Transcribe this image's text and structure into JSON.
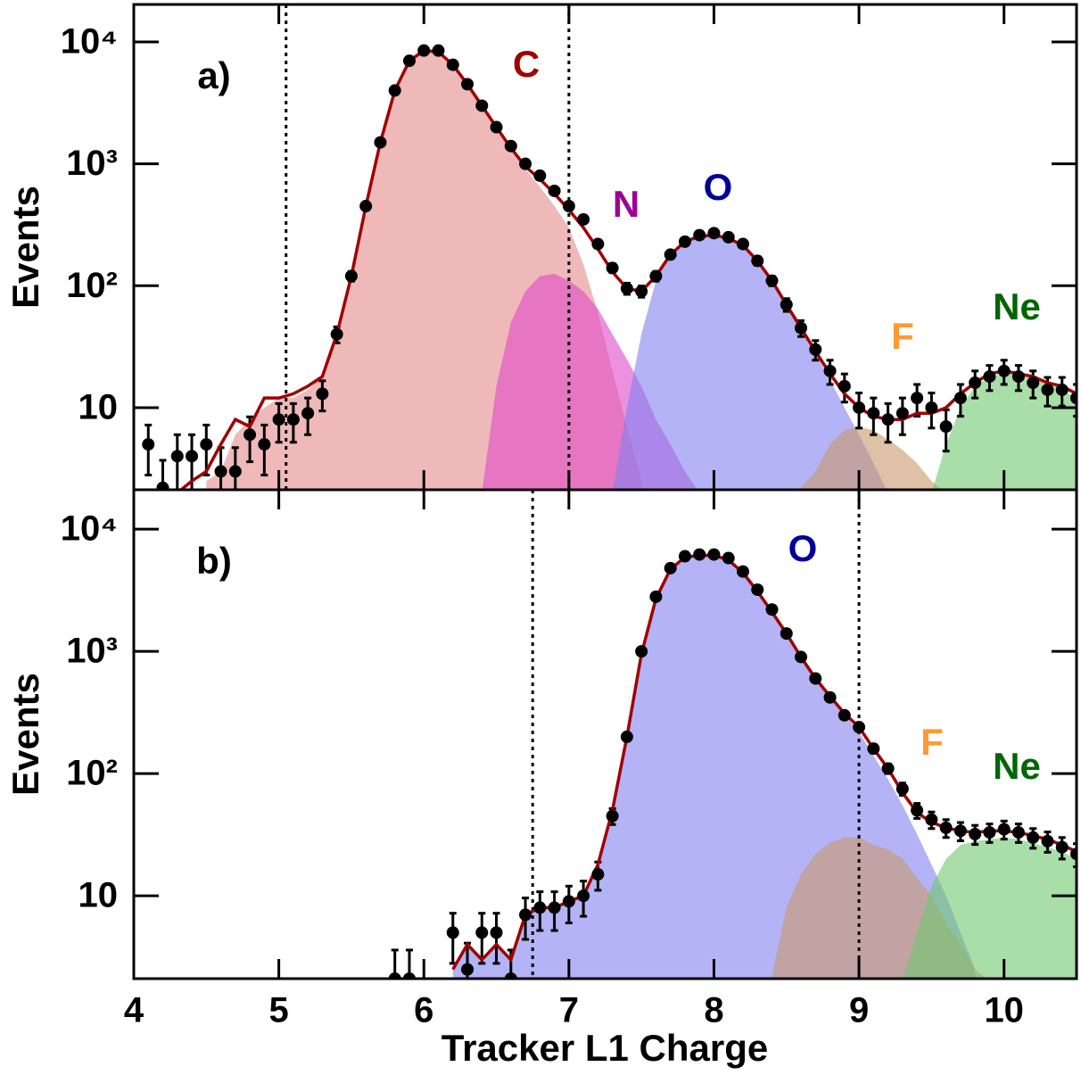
{
  "chart_data": [
    {
      "type": "area",
      "panel_label": "a)",
      "ylabel": "Events",
      "log_y": true,
      "show_xtick_labels": false,
      "xlim": [
        4,
        10.5
      ],
      "xticks": [
        4,
        5,
        6,
        7,
        8,
        9,
        10
      ],
      "ylim": [
        2.12,
        20300
      ],
      "yticks": [
        10,
        {
          "value": 100,
          "label": "10²"
        },
        {
          "value": 1000,
          "label": "10³"
        },
        {
          "value": 10000,
          "label": "10⁴"
        }
      ],
      "cuts": [
        5.05,
        7.0
      ],
      "x": [
        4.0,
        4.1,
        4.2,
        4.3,
        4.4,
        4.5,
        4.6,
        4.7,
        4.8,
        4.9,
        5.0,
        5.1,
        5.2,
        5.3,
        5.4,
        5.5,
        5.6,
        5.7,
        5.8,
        5.9,
        6.0,
        6.1,
        6.2,
        6.3,
        6.4,
        6.5,
        6.6,
        6.7,
        6.8,
        6.9,
        7.0,
        7.1,
        7.2,
        7.3,
        7.4,
        7.5,
        7.6,
        7.7,
        7.8,
        7.9,
        8.0,
        8.1,
        8.2,
        8.3,
        8.4,
        8.5,
        8.6,
        8.7,
        8.8,
        8.9,
        9.0,
        9.1,
        9.2,
        9.3,
        9.4,
        9.5,
        9.6,
        9.7,
        9.8,
        9.9,
        10.0,
        10.1,
        10.2,
        10.3,
        10.4,
        10.5
      ],
      "data": {
        "color": "#000000",
        "values": [
          null,
          5,
          2.2,
          4,
          4,
          5,
          3,
          3,
          6,
          5,
          8,
          8,
          9,
          13,
          40,
          120,
          450,
          1500,
          4000,
          7000,
          8500,
          8500,
          6500,
          4500,
          3000,
          2000,
          1400,
          1000,
          800,
          600,
          450,
          350,
          220,
          140,
          95,
          90,
          120,
          180,
          230,
          260,
          270,
          250,
          220,
          160,
          110,
          70,
          45,
          30,
          20,
          15,
          10,
          9,
          8,
          9,
          12,
          10,
          7,
          12,
          16,
          18,
          20,
          18,
          16,
          14,
          14,
          12
        ],
        "errors": [
          null,
          2.2,
          1.5,
          2,
          2,
          2.2,
          1.7,
          1.7,
          2.4,
          2.2,
          2.8,
          2.8,
          3,
          3.6,
          6,
          11,
          21,
          39,
          63,
          84,
          92,
          92,
          81,
          67,
          55,
          45,
          37,
          32,
          28,
          24,
          21,
          19,
          15,
          12,
          10,
          9.5,
          11,
          13,
          15,
          16,
          16,
          16,
          15,
          13,
          10,
          8.4,
          6.7,
          5.5,
          4.5,
          3.9,
          3.2,
          3,
          2.8,
          3,
          3.5,
          3.2,
          2.6,
          3.5,
          4,
          4.2,
          4.5,
          4.2,
          4,
          3.7,
          3.7,
          3.5
        ]
      },
      "fit": {
        "color": "#a00000",
        "values": [
          1.8,
          1.8,
          1.9,
          2,
          2.5,
          3,
          5,
          8,
          7,
          12,
          12,
          13,
          15,
          18,
          40,
          120,
          450,
          1500,
          4000,
          7000,
          8500,
          8300,
          6500,
          4500,
          3000,
          2000,
          1350,
          950,
          750,
          570,
          420,
          300,
          200,
          130,
          95,
          90,
          120,
          180,
          230,
          255,
          260,
          245,
          215,
          160,
          110,
          70,
          45,
          29,
          19,
          13,
          10,
          8.5,
          8,
          8,
          9,
          9,
          10,
          13,
          16,
          19,
          20,
          19,
          18,
          16,
          15,
          13
        ]
      },
      "series": [
        {
          "name": "C",
          "color": "#a00000",
          "fill": "#e58a8a",
          "x": [
            4.5,
            4.6,
            4.7,
            4.8,
            4.9,
            5.0,
            5.1,
            5.2,
            5.3,
            5.4,
            5.5,
            5.6,
            5.7,
            5.8,
            5.9,
            6.0,
            6.1,
            6.2,
            6.3,
            6.4,
            6.5,
            6.6,
            6.7,
            6.8,
            6.9,
            7.0,
            7.1,
            7.2,
            7.3,
            7.4,
            7.5
          ],
          "values": [
            2.5,
            3,
            6,
            8,
            10,
            12,
            12,
            14,
            18,
            40,
            120,
            450,
            1500,
            4000,
            7000,
            8500,
            8300,
            6500,
            4500,
            3000,
            2000,
            1300,
            900,
            650,
            450,
            300,
            150,
            60,
            20,
            7,
            2.5
          ]
        },
        {
          "name": "N",
          "color": "#990099",
          "fill": "#e048c8",
          "x": [
            6.4,
            6.5,
            6.6,
            6.7,
            6.8,
            6.9,
            7.0,
            7.1,
            7.2,
            7.3,
            7.4,
            7.5,
            7.6,
            7.7,
            7.8,
            7.9
          ],
          "values": [
            2,
            15,
            50,
            90,
            120,
            125,
            110,
            90,
            65,
            40,
            25,
            15,
            8,
            5,
            3,
            2
          ]
        },
        {
          "name": "O",
          "color": "#000099",
          "fill": "#8080f0",
          "x": [
            7.3,
            7.4,
            7.5,
            7.6,
            7.7,
            7.8,
            7.9,
            8.0,
            8.1,
            8.2,
            8.3,
            8.4,
            8.5,
            8.6,
            8.7,
            8.8,
            8.9,
            9.0,
            9.1,
            9.2
          ],
          "values": [
            2,
            10,
            40,
            110,
            180,
            230,
            260,
            265,
            245,
            210,
            160,
            110,
            70,
            45,
            28,
            17,
            10,
            6,
            3.5,
            2
          ]
        },
        {
          "name": "F",
          "color": "#ff9933",
          "fill": "#c8986a",
          "x": [
            8.6,
            8.7,
            8.8,
            8.9,
            9.0,
            9.1,
            9.2,
            9.3,
            9.4,
            9.5,
            9.6
          ],
          "values": [
            2.2,
            3,
            5,
            6.5,
            7,
            6.5,
            5.5,
            4.5,
            3.5,
            2.5,
            2
          ]
        },
        {
          "name": "Ne",
          "color": "#006600",
          "fill": "#70c870",
          "x": [
            9.5,
            9.6,
            9.7,
            9.8,
            9.9,
            10.0,
            10.1,
            10.2,
            10.3,
            10.4,
            10.5
          ],
          "values": [
            2,
            5,
            10,
            15,
            18,
            19,
            19,
            18,
            16,
            14,
            12
          ]
        }
      ]
    },
    {
      "type": "area",
      "panel_label": "b)",
      "ylabel": "Events",
      "xlabel": "Tracker L1 Charge",
      "log_y": true,
      "show_xtick_labels": true,
      "xlim": [
        4,
        10.5
      ],
      "xticks": [
        4,
        5,
        6,
        7,
        8,
        9,
        10
      ],
      "ylim": [
        2.1,
        21000
      ],
      "yticks": [
        10,
        {
          "value": 100,
          "label": "10²"
        },
        {
          "value": 1000,
          "label": "10³"
        },
        {
          "value": 10000,
          "label": "10⁴"
        }
      ],
      "cuts": [
        6.75,
        9.0
      ],
      "x": [
        4.0,
        4.1,
        4.2,
        4.3,
        4.4,
        4.5,
        4.6,
        4.7,
        4.8,
        4.9,
        5.0,
        5.1,
        5.2,
        5.3,
        5.4,
        5.5,
        5.6,
        5.7,
        5.8,
        5.9,
        6.0,
        6.1,
        6.2,
        6.3,
        6.4,
        6.5,
        6.6,
        6.7,
        6.8,
        6.9,
        7.0,
        7.1,
        7.2,
        7.3,
        7.4,
        7.5,
        7.6,
        7.7,
        7.8,
        7.9,
        8.0,
        8.1,
        8.2,
        8.3,
        8.4,
        8.5,
        8.6,
        8.7,
        8.8,
        8.9,
        9.0,
        9.1,
        9.2,
        9.3,
        9.4,
        9.5,
        9.6,
        9.7,
        9.8,
        9.9,
        10.0,
        10.1,
        10.2,
        10.3,
        10.4,
        10.5
      ],
      "data": {
        "color": "#000000",
        "values": [
          null,
          null,
          null,
          null,
          null,
          null,
          null,
          null,
          null,
          null,
          null,
          null,
          null,
          null,
          null,
          null,
          null,
          null,
          2.1,
          2.1,
          null,
          null,
          5,
          2.5,
          5,
          5,
          2.1,
          7,
          8,
          8,
          9,
          10,
          15,
          45,
          200,
          1000,
          2800,
          4800,
          6000,
          6200,
          6200,
          5800,
          4500,
          3200,
          2200,
          1400,
          900,
          600,
          420,
          300,
          240,
          160,
          110,
          75,
          50,
          42,
          36,
          34,
          32,
          33,
          35,
          33,
          30,
          28,
          25,
          22
        ],
        "errors": [
          null,
          null,
          null,
          null,
          null,
          null,
          null,
          null,
          null,
          null,
          null,
          null,
          null,
          null,
          null,
          null,
          null,
          null,
          1.5,
          1.5,
          null,
          null,
          2.2,
          1.6,
          2.2,
          2.2,
          1.5,
          2.6,
          2.8,
          2.8,
          3,
          3.2,
          3.9,
          6.7,
          14,
          32,
          53,
          69,
          77,
          79,
          79,
          76,
          67,
          57,
          47,
          37,
          30,
          24,
          20,
          17,
          15,
          13,
          10,
          8.7,
          7,
          6.5,
          6,
          5.8,
          5.7,
          5.7,
          5.9,
          5.7,
          5.5,
          5.3,
          5,
          4.7
        ]
      },
      "fit": {
        "color": "#a00000",
        "values": [
          null,
          null,
          null,
          null,
          null,
          null,
          null,
          null,
          null,
          null,
          null,
          null,
          null,
          null,
          null,
          null,
          null,
          null,
          null,
          null,
          null,
          null,
          2.5,
          4,
          3,
          4,
          3,
          7,
          8,
          8,
          9,
          10,
          18,
          50,
          200,
          950,
          2700,
          4700,
          5900,
          6100,
          6100,
          5600,
          4400,
          3100,
          2100,
          1400,
          900,
          600,
          430,
          310,
          240,
          160,
          110,
          70,
          48,
          40,
          36,
          34,
          33,
          34,
          34,
          33,
          31,
          29,
          26,
          23
        ]
      },
      "series": [
        {
          "name": "O",
          "color": "#000099",
          "fill": "#8080f0",
          "x": [
            6.2,
            6.3,
            6.4,
            6.5,
            6.6,
            6.7,
            6.8,
            6.9,
            7.0,
            7.1,
            7.2,
            7.3,
            7.4,
            7.5,
            7.6,
            7.7,
            7.8,
            7.9,
            8.0,
            8.1,
            8.2,
            8.3,
            8.4,
            8.5,
            8.6,
            8.7,
            8.8,
            8.9,
            9.0,
            9.1,
            9.2,
            9.3,
            9.4,
            9.5,
            9.6,
            9.7,
            9.8
          ],
          "values": [
            2.5,
            4,
            3,
            4,
            3,
            7,
            8,
            8,
            9,
            10,
            18,
            50,
            200,
            950,
            2700,
            4700,
            5900,
            6100,
            6100,
            5600,
            4400,
            3100,
            2100,
            1400,
            900,
            600,
            430,
            300,
            220,
            140,
            90,
            55,
            32,
            18,
            10,
            5,
            2.5
          ]
        },
        {
          "name": "F",
          "color": "#ff9933",
          "fill": "#c8986a",
          "x": [
            8.4,
            8.5,
            8.6,
            8.7,
            8.8,
            8.9,
            9.0,
            9.1,
            9.2,
            9.3,
            9.4,
            9.5,
            9.6,
            9.7,
            9.8,
            9.9
          ],
          "values": [
            2.2,
            8,
            15,
            22,
            27,
            30,
            30,
            26,
            24,
            20,
            14,
            10,
            6,
            4,
            2.5,
            2
          ]
        },
        {
          "name": "Ne",
          "color": "#006600",
          "fill": "#70c870",
          "x": [
            9.3,
            9.4,
            9.5,
            9.6,
            9.7,
            9.8,
            9.9,
            10.0,
            10.1,
            10.2,
            10.3,
            10.4,
            10.5
          ],
          "values": [
            2,
            5,
            12,
            20,
            26,
            28,
            29,
            30,
            29,
            27,
            25,
            23,
            20
          ]
        }
      ]
    }
  ]
}
